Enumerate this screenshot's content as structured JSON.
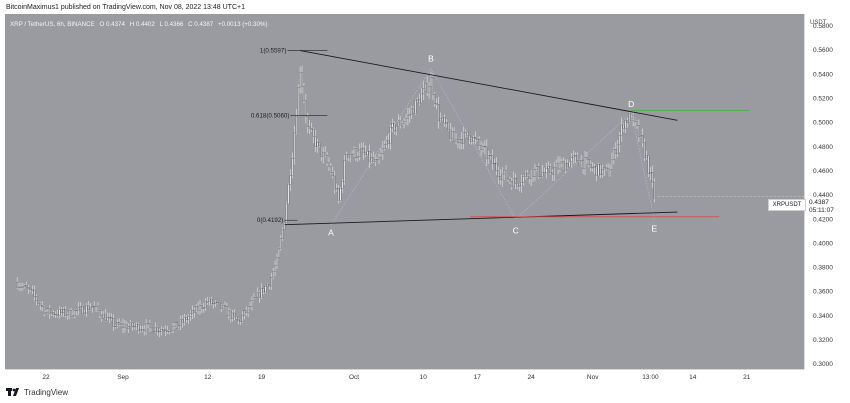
{
  "header": {
    "publisher": "BitcoinMaximus1 published on TradingView.com, Nov 08, 2022 13:48 UTC+1"
  },
  "symbol_line": {
    "symbol": "XRP / TetherUS, 6h, BINANCE",
    "open": "O 0.4374",
    "high": "H 0.4402",
    "low": "L 0.4366",
    "close": "C 0.4387",
    "change": "+0.0013 (+0.30%)"
  },
  "price_axis": {
    "currency": "USDT",
    "ticks": [
      "0.5800",
      "0.5600",
      "0.5400",
      "0.5200",
      "0.5000",
      "0.4800",
      "0.4600",
      "0.4400",
      "0.4200",
      "0.4000",
      "0.3800",
      "0.3600",
      "0.3400",
      "0.3200",
      "0.3000"
    ]
  },
  "current_price": {
    "label": "XRPUSDT",
    "price": "0.4387",
    "countdown": "05:11:07"
  },
  "time_axis": {
    "ticks": [
      "22",
      "Sep",
      "12",
      "19",
      "Oct",
      "10",
      "17",
      "24",
      "Nov",
      "13:00",
      "14",
      "21"
    ]
  },
  "fib_labels": {
    "top": "1(0.5597)",
    "mid": "0.618(0.5060)",
    "bottom": "0(0.4192)"
  },
  "wave_labels": [
    "A",
    "B",
    "C",
    "D",
    "E"
  ],
  "footer": {
    "brand": "TradingView"
  },
  "colors": {
    "plot_bg": "#9a9ba1",
    "candle": "#f5f5f5",
    "trendline": "#1a1a1a",
    "support_red": "#d94848",
    "resistance_green": "#4caf50",
    "dotted_path": "#b8b8c8"
  },
  "chart_data": {
    "type": "candlestick",
    "title": "XRP / TetherUS, 6h, BINANCE",
    "ylabel": "USDT",
    "ylim": [
      0.3,
      0.59
    ],
    "x_ticks": [
      "22",
      "Sep",
      "12",
      "19",
      "Oct",
      "10",
      "17",
      "24",
      "Nov",
      "13:00",
      "14",
      "21"
    ],
    "close_path": [
      [
        "Aug 17",
        0.368
      ],
      [
        "Aug 19",
        0.36
      ],
      [
        "Aug 21",
        0.343
      ],
      [
        "Aug 24",
        0.342
      ],
      [
        "Aug 27",
        0.348
      ],
      [
        "Aug 30",
        0.332
      ],
      [
        "Sep 2",
        0.331
      ],
      [
        "Sep 5",
        0.329
      ],
      [
        "Sep 7",
        0.331
      ],
      [
        "Sep 9",
        0.342
      ],
      [
        "Sep 11",
        0.352
      ],
      [
        "Sep 13",
        0.346
      ],
      [
        "Sep 15",
        0.335
      ],
      [
        "Sep 17",
        0.352
      ],
      [
        "Sep 19",
        0.368
      ],
      [
        "Sep 20",
        0.385
      ],
      [
        "Sep 21",
        0.42
      ],
      [
        "Sep 22",
        0.475
      ],
      [
        "Sep 23",
        0.545
      ],
      [
        "Sep 24",
        0.495
      ],
      [
        "Sep 26",
        0.472
      ],
      [
        "Sep 27",
        0.46
      ],
      [
        "Sep 28",
        0.435
      ],
      [
        "Sep 29",
        0.475
      ],
      [
        "Oct 1",
        0.475
      ],
      [
        "Oct 3",
        0.465
      ],
      [
        "Oct 5",
        0.495
      ],
      [
        "Oct 7",
        0.505
      ],
      [
        "Oct 9",
        0.525
      ],
      [
        "Oct 10",
        0.535
      ],
      [
        "Oct 11",
        0.505
      ],
      [
        "Oct 13",
        0.485
      ],
      [
        "Oct 15",
        0.49
      ],
      [
        "Oct 17",
        0.475
      ],
      [
        "Oct 19",
        0.458
      ],
      [
        "Oct 21",
        0.45
      ],
      [
        "Oct 23",
        0.46
      ],
      [
        "Oct 25",
        0.458
      ],
      [
        "Oct 27",
        0.465
      ],
      [
        "Oct 29",
        0.47
      ],
      [
        "Oct 31",
        0.462
      ],
      [
        "Nov 2",
        0.458
      ],
      [
        "Nov 4",
        0.5
      ],
      [
        "Nov 5",
        0.505
      ],
      [
        "Nov 6",
        0.49
      ],
      [
        "Nov 7",
        0.47
      ],
      [
        "Nov 8",
        0.4387
      ]
    ],
    "pattern": "contracting triangle A-B-C-D-E",
    "points": {
      "A": [
        "Sep 27",
        0.415
      ],
      "B": [
        "Oct 10",
        0.545
      ],
      "C": [
        "Oct 21",
        0.42
      ],
      "D": [
        "Nov 5",
        0.508
      ],
      "E": [
        "Nov 8",
        0.42
      ]
    },
    "fibonacci": [
      {
        "level": "1",
        "value": 0.5597
      },
      {
        "level": "0.618",
        "value": 0.506
      },
      {
        "level": "0",
        "value": 0.4192
      }
    ],
    "trendlines": [
      {
        "name": "upper",
        "from": [
          "Sep 23",
          0.5597
        ],
        "to": [
          "Nov 11",
          0.502
        ]
      },
      {
        "name": "lower",
        "from": [
          "Sep 21",
          0.4155
        ],
        "to": [
          "Nov 11",
          0.426
        ]
      }
    ],
    "horizontal_lines": [
      {
        "color": "green",
        "value": 0.51
      },
      {
        "color": "red",
        "value": 0.422
      }
    ],
    "last_price": 0.4387
  }
}
